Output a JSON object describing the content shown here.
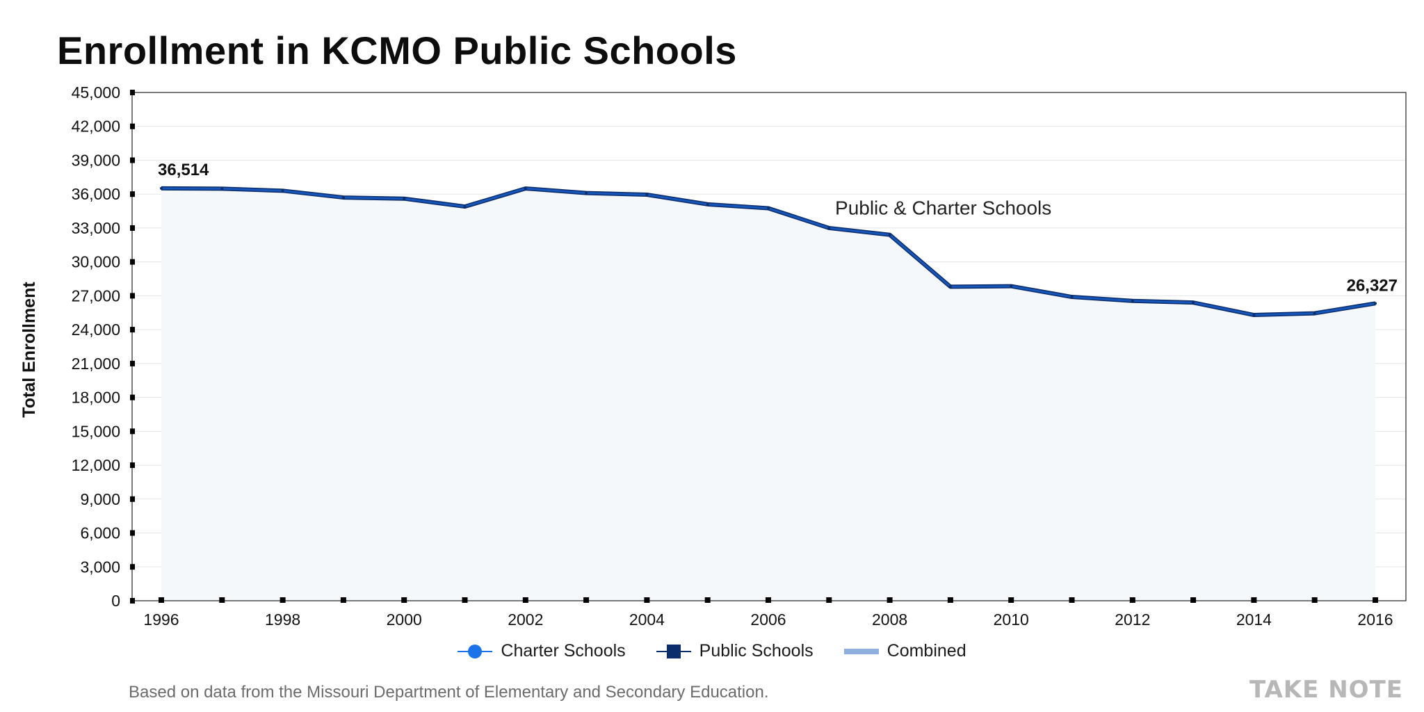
{
  "header": {
    "title": "Enrollment in KCMO Public Schools"
  },
  "chart_data": {
    "type": "area",
    "title": "Enrollment in KCMO Public Schools",
    "xlabel": "",
    "ylabel": "Total Enrollment",
    "xlim": [
      1996,
      2016
    ],
    "ylim": [
      0,
      45000
    ],
    "y_ticks": [
      0,
      3000,
      6000,
      9000,
      12000,
      15000,
      18000,
      21000,
      24000,
      27000,
      30000,
      33000,
      36000,
      39000,
      42000,
      45000
    ],
    "y_tick_labels": [
      "0",
      "3,000",
      "6,000",
      "9,000",
      "12,000",
      "15,000",
      "18,000",
      "21,000",
      "24,000",
      "27,000",
      "30,000",
      "33,000",
      "36,000",
      "39,000",
      "42,000",
      "45,000"
    ],
    "x_ticks": [
      1996,
      1998,
      2000,
      2002,
      2004,
      2006,
      2008,
      2010,
      2012,
      2014,
      2016
    ],
    "x_tick_labels": [
      "1996",
      "1998",
      "2000",
      "2002",
      "2004",
      "2006",
      "2008",
      "2010",
      "2012",
      "2014",
      "2016"
    ],
    "grid": true,
    "series": [
      {
        "name": "Combined",
        "x": [
          1996,
          1997,
          1998,
          1999,
          2000,
          2001,
          2002,
          2003,
          2004,
          2005,
          2006,
          2007,
          2008,
          2009,
          2010,
          2011,
          2012,
          2013,
          2014,
          2015,
          2016
        ],
        "values": [
          36514,
          36480,
          36300,
          35700,
          35600,
          34900,
          36500,
          36100,
          35950,
          35100,
          34750,
          33000,
          32400,
          27800,
          27850,
          26900,
          26550,
          26400,
          25300,
          25450,
          26327
        ]
      }
    ],
    "annotations": [
      {
        "text": "36,514",
        "x": 1996,
        "y": 36514
      },
      {
        "text": "26,327",
        "x": 2016,
        "y": 26327
      },
      {
        "text": "Public & Charter Schools",
        "x": 2007.1,
        "y": 34200
      }
    ],
    "legend": {
      "position": "bottom-center",
      "items": [
        {
          "label": "Charter Schools",
          "color": "#1a73e8",
          "marker": "circle"
        },
        {
          "label": "Public Schools",
          "color": "#0b2d6b",
          "marker": "square"
        },
        {
          "label": "Combined",
          "color": "#8fb0de",
          "marker": "band"
        }
      ]
    },
    "colors": {
      "line": "#1656b8",
      "line_dark": "#0b2d6b",
      "fill": "#f5f8fa"
    }
  },
  "footer": {
    "source": "Based on data from the Missouri Department of Elementary and Secondary Education.",
    "brand": "TAKE NOTE"
  }
}
